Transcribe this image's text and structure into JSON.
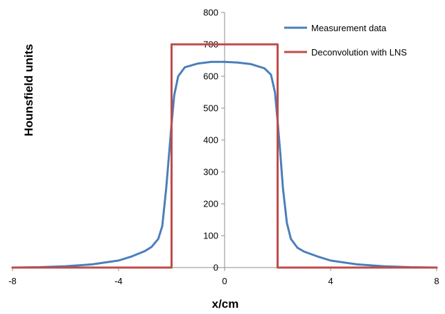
{
  "chart_data": {
    "type": "line",
    "title": "",
    "xlabel": "x/cm",
    "ylabel": "Hounsfield units",
    "xlim": [
      -8,
      8
    ],
    "ylim": [
      0,
      800
    ],
    "x_ticks": [
      -8,
      -4,
      0,
      4,
      8
    ],
    "y_ticks": [
      0,
      100,
      200,
      300,
      400,
      500,
      600,
      700,
      800
    ],
    "grid": false,
    "legend_position": "top-right",
    "series": [
      {
        "name": "Measurement data",
        "color": "#4a7ebb",
        "points": [
          [
            -8,
            0
          ],
          [
            -7,
            1
          ],
          [
            -6,
            4
          ],
          [
            -5,
            10
          ],
          [
            -4,
            22
          ],
          [
            -3.5,
            35
          ],
          [
            -3,
            52
          ],
          [
            -2.75,
            65
          ],
          [
            -2.5,
            90
          ],
          [
            -2.35,
            130
          ],
          [
            -2.2,
            250
          ],
          [
            -2.1,
            350
          ],
          [
            -2.0,
            450
          ],
          [
            -1.9,
            540
          ],
          [
            -1.75,
            600
          ],
          [
            -1.5,
            628
          ],
          [
            -1.0,
            640
          ],
          [
            -0.5,
            645
          ],
          [
            0,
            645
          ],
          [
            0.5,
            643
          ],
          [
            1.0,
            638
          ],
          [
            1.5,
            625
          ],
          [
            1.75,
            605
          ],
          [
            1.9,
            550
          ],
          [
            2.0,
            460
          ],
          [
            2.1,
            360
          ],
          [
            2.2,
            250
          ],
          [
            2.35,
            140
          ],
          [
            2.5,
            90
          ],
          [
            2.75,
            62
          ],
          [
            3,
            50
          ],
          [
            3.5,
            35
          ],
          [
            4,
            22
          ],
          [
            5,
            10
          ],
          [
            6,
            4
          ],
          [
            7,
            1
          ],
          [
            8,
            0
          ]
        ]
      },
      {
        "name": "Deconvolution with LNS",
        "color": "#be4b48",
        "points": [
          [
            -8,
            0
          ],
          [
            -2,
            0
          ],
          [
            -2,
            700
          ],
          [
            2,
            700
          ],
          [
            2,
            0
          ],
          [
            8,
            0
          ]
        ]
      }
    ]
  }
}
